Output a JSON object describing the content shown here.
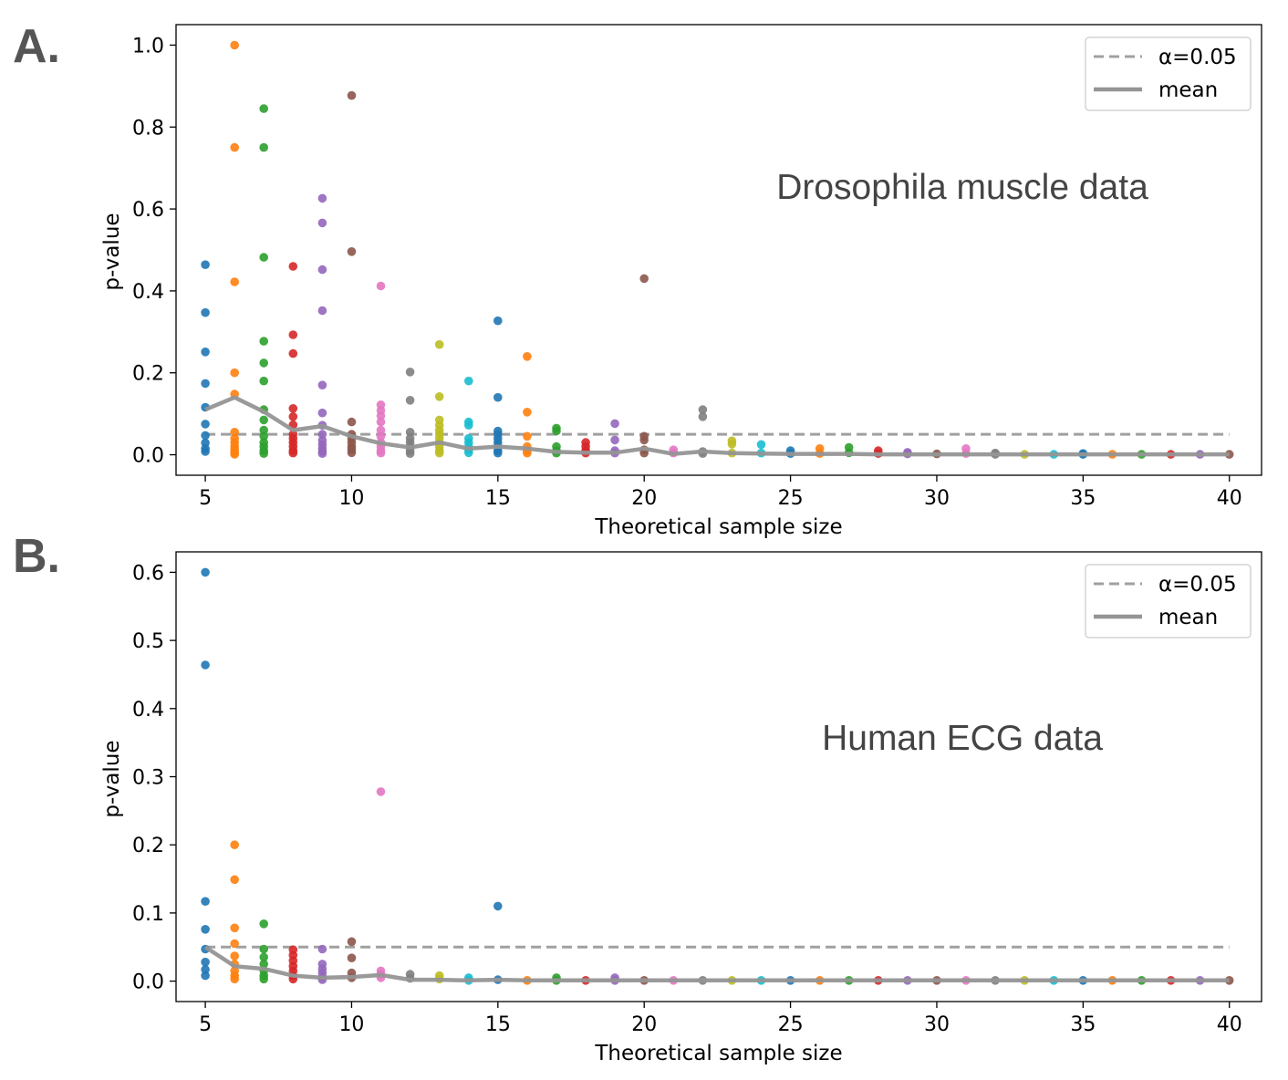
{
  "panels": [
    {
      "letter": "A.",
      "annotation": "Drosophila muscle data",
      "legend": {
        "alpha_label": "α=0.05",
        "mean_label": "mean"
      }
    },
    {
      "letter": "B.",
      "annotation": "Human ECG data",
      "legend": {
        "alpha_label": "α=0.05",
        "mean_label": "mean"
      }
    }
  ],
  "colors": [
    "#1f77b4",
    "#ff7f0e",
    "#2ca02c",
    "#d62728",
    "#9467bd",
    "#8c564b",
    "#e377c2",
    "#7f7f7f",
    "#bcbd22",
    "#17becf"
  ],
  "reference_color": "#a0a0a0",
  "mean_color": "#959595",
  "chart_data": [
    {
      "type": "scatter",
      "xlabel": "Theoretical sample size",
      "ylabel": "p-value",
      "xlim": [
        4,
        41.1
      ],
      "ylim": [
        -0.05,
        1.05
      ],
      "xticks": [
        5,
        10,
        15,
        20,
        25,
        30,
        35,
        40
      ],
      "yticks": [
        0.0,
        0.2,
        0.4,
        0.6,
        0.8,
        1.0
      ],
      "alpha": 0.05,
      "legend_position": "top-right",
      "points": [
        {
          "x": 5,
          "y": [
            0.464,
            0.347,
            0.251,
            0.174,
            0.116,
            0.075,
            0.047,
            0.029,
            0.015,
            0.008
          ]
        },
        {
          "x": 6,
          "y": [
            1.0,
            0.75,
            0.422,
            0.2,
            0.148,
            0.055,
            0.04,
            0.03,
            0.02,
            0.012,
            0.005,
            0.001
          ]
        },
        {
          "x": 7,
          "y": [
            0.845,
            0.75,
            0.482,
            0.277,
            0.224,
            0.18,
            0.11,
            0.085,
            0.06,
            0.045,
            0.03,
            0.02,
            0.01,
            0.003
          ]
        },
        {
          "x": 8,
          "y": [
            0.46,
            0.293,
            0.247,
            0.113,
            0.093,
            0.073,
            0.05,
            0.04,
            0.03,
            0.02,
            0.01,
            0.004
          ]
        },
        {
          "x": 9,
          "y": [
            0.626,
            0.566,
            0.452,
            0.352,
            0.17,
            0.102,
            0.072,
            0.05,
            0.035,
            0.025,
            0.015,
            0.008,
            0.003
          ]
        },
        {
          "x": 10,
          "y": [
            0.877,
            0.496,
            0.08,
            0.05,
            0.04,
            0.03,
            0.02,
            0.012,
            0.005
          ]
        },
        {
          "x": 11,
          "y": [
            0.412,
            0.122,
            0.108,
            0.095,
            0.08,
            0.06,
            0.045,
            0.03,
            0.02,
            0.01,
            0.004
          ]
        },
        {
          "x": 12,
          "y": [
            0.202,
            0.133,
            0.055,
            0.04,
            0.03,
            0.02,
            0.01,
            0.003
          ]
        },
        {
          "x": 13,
          "y": [
            0.269,
            0.142,
            0.085,
            0.072,
            0.06,
            0.05,
            0.04,
            0.03,
            0.02,
            0.01,
            0.004
          ]
        },
        {
          "x": 14,
          "y": [
            0.18,
            0.08,
            0.072,
            0.04,
            0.03,
            0.02,
            0.012,
            0.005
          ]
        },
        {
          "x": 15,
          "y": [
            0.327,
            0.14,
            0.058,
            0.05,
            0.04,
            0.03,
            0.02,
            0.01,
            0.004
          ]
        },
        {
          "x": 16,
          "y": [
            0.24,
            0.104,
            0.045,
            0.02,
            0.01,
            0.004
          ]
        },
        {
          "x": 17,
          "y": [
            0.065,
            0.058,
            0.02,
            0.01,
            0.004
          ]
        },
        {
          "x": 18,
          "y": [
            0.03,
            0.02,
            0.01,
            0.004
          ]
        },
        {
          "x": 19,
          "y": [
            0.076,
            0.036,
            0.01,
            0.004
          ]
        },
        {
          "x": 20,
          "y": [
            0.43,
            0.045,
            0.036,
            0.012,
            0.004
          ]
        },
        {
          "x": 21,
          "y": [
            0.012,
            0.004
          ]
        },
        {
          "x": 22,
          "y": [
            0.11,
            0.093,
            0.008,
            0.003
          ]
        },
        {
          "x": 23,
          "y": [
            0.034,
            0.026,
            0.004
          ]
        },
        {
          "x": 24,
          "y": [
            0.025,
            0.004
          ]
        },
        {
          "x": 25,
          "y": [
            0.01,
            0.003
          ]
        },
        {
          "x": 26,
          "y": [
            0.015,
            0.003
          ]
        },
        {
          "x": 27,
          "y": [
            0.018,
            0.005
          ]
        },
        {
          "x": 28,
          "y": [
            0.01,
            0.003
          ]
        },
        {
          "x": 29,
          "y": [
            0.006,
            0.002
          ]
        },
        {
          "x": 30,
          "y": [
            0.002
          ]
        },
        {
          "x": 31,
          "y": [
            0.015,
            0.003
          ]
        },
        {
          "x": 32,
          "y": [
            0.004,
            0.001
          ]
        },
        {
          "x": 33,
          "y": [
            0.001
          ]
        },
        {
          "x": 34,
          "y": [
            0.001
          ]
        },
        {
          "x": 35,
          "y": [
            0.003,
            0.001
          ]
        },
        {
          "x": 36,
          "y": [
            0.001
          ]
        },
        {
          "x": 37,
          "y": [
            0.001
          ]
        },
        {
          "x": 38,
          "y": [
            0.001
          ]
        },
        {
          "x": 39,
          "y": [
            0.001
          ]
        },
        {
          "x": 40,
          "y": [
            0.001
          ]
        }
      ],
      "mean": {
        "x": [
          5,
          6,
          7,
          8,
          9,
          10,
          11,
          12,
          13,
          14,
          15,
          16,
          17,
          18,
          19,
          20,
          21,
          22,
          23,
          24,
          25,
          26,
          27,
          28,
          29,
          30,
          31,
          32,
          33,
          34,
          35,
          36,
          37,
          38,
          39,
          40
        ],
        "y": [
          0.11,
          0.14,
          0.105,
          0.06,
          0.07,
          0.045,
          0.028,
          0.018,
          0.03,
          0.015,
          0.02,
          0.015,
          0.007,
          0.005,
          0.005,
          0.015,
          0.002,
          0.008,
          0.004,
          0.003,
          0.002,
          0.002,
          0.002,
          0.001,
          0.001,
          0.001,
          0.001,
          0.001,
          0.001,
          0.001,
          0.001,
          0.001,
          0.001,
          0.001,
          0.001,
          0.001
        ]
      }
    },
    {
      "type": "scatter",
      "xlabel": "Theoretical sample size",
      "ylabel": "p-value",
      "xlim": [
        4,
        41.1
      ],
      "ylim": [
        -0.03,
        0.63
      ],
      "xticks": [
        5,
        10,
        15,
        20,
        25,
        30,
        35,
        40
      ],
      "yticks": [
        0.0,
        0.1,
        0.2,
        0.3,
        0.4,
        0.5,
        0.6
      ],
      "alpha": 0.05,
      "legend_position": "top-right",
      "points": [
        {
          "x": 5,
          "y": [
            0.6,
            0.464,
            0.117,
            0.076,
            0.047,
            0.028,
            0.017,
            0.008
          ]
        },
        {
          "x": 6,
          "y": [
            0.2,
            0.149,
            0.078,
            0.055,
            0.037,
            0.025,
            0.015,
            0.008,
            0.003
          ]
        },
        {
          "x": 7,
          "y": [
            0.084,
            0.047,
            0.035,
            0.025,
            0.015,
            0.008,
            0.003
          ]
        },
        {
          "x": 8,
          "y": [
            0.046,
            0.038,
            0.03,
            0.022,
            0.015,
            0.008,
            0.003
          ]
        },
        {
          "x": 9,
          "y": [
            0.047,
            0.025,
            0.018,
            0.012,
            0.006,
            0.002
          ]
        },
        {
          "x": 10,
          "y": [
            0.058,
            0.034,
            0.012,
            0.005
          ]
        },
        {
          "x": 11,
          "y": [
            0.278,
            0.015,
            0.01,
            0.005
          ]
        },
        {
          "x": 12,
          "y": [
            0.01,
            0.004
          ]
        },
        {
          "x": 13,
          "y": [
            0.008,
            0.003
          ]
        },
        {
          "x": 14,
          "y": [
            0.005,
            0.001
          ]
        },
        {
          "x": 15,
          "y": [
            0.11,
            0.002
          ]
        },
        {
          "x": 16,
          "y": [
            0.001
          ]
        },
        {
          "x": 17,
          "y": [
            0.005,
            0.001
          ]
        },
        {
          "x": 18,
          "y": [
            0.001
          ]
        },
        {
          "x": 19,
          "y": [
            0.005,
            0.001
          ]
        },
        {
          "x": 20,
          "y": [
            0.001
          ]
        },
        {
          "x": 21,
          "y": [
            0.001
          ]
        },
        {
          "x": 22,
          "y": [
            0.001
          ]
        },
        {
          "x": 23,
          "y": [
            0.001
          ]
        },
        {
          "x": 24,
          "y": [
            0.001
          ]
        },
        {
          "x": 25,
          "y": [
            0.001
          ]
        },
        {
          "x": 26,
          "y": [
            0.001
          ]
        },
        {
          "x": 27,
          "y": [
            0.001
          ]
        },
        {
          "x": 28,
          "y": [
            0.001
          ]
        },
        {
          "x": 29,
          "y": [
            0.001
          ]
        },
        {
          "x": 30,
          "y": [
            0.001
          ]
        },
        {
          "x": 31,
          "y": [
            0.001
          ]
        },
        {
          "x": 32,
          "y": [
            0.001
          ]
        },
        {
          "x": 33,
          "y": [
            0.001
          ]
        },
        {
          "x": 34,
          "y": [
            0.001
          ]
        },
        {
          "x": 35,
          "y": [
            0.001
          ]
        },
        {
          "x": 36,
          "y": [
            0.001
          ]
        },
        {
          "x": 37,
          "y": [
            0.001
          ]
        },
        {
          "x": 38,
          "y": [
            0.001
          ]
        },
        {
          "x": 39,
          "y": [
            0.001
          ]
        },
        {
          "x": 40,
          "y": [
            0.001
          ]
        }
      ],
      "mean": {
        "x": [
          5,
          6,
          7,
          8,
          9,
          10,
          11,
          12,
          13,
          14,
          15,
          16,
          17,
          18,
          19,
          20,
          21,
          22,
          23,
          24,
          25,
          26,
          27,
          28,
          29,
          30,
          31,
          32,
          33,
          34,
          35,
          36,
          37,
          38,
          39,
          40
        ],
        "y": [
          0.05,
          0.022,
          0.018,
          0.008,
          0.005,
          0.006,
          0.009,
          0.002,
          0.002,
          0.001,
          0.002,
          0.001,
          0.001,
          0.001,
          0.001,
          0.001,
          0.001,
          0.001,
          0.001,
          0.001,
          0.001,
          0.001,
          0.001,
          0.001,
          0.001,
          0.001,
          0.001,
          0.001,
          0.001,
          0.001,
          0.001,
          0.001,
          0.001,
          0.001,
          0.001,
          0.001
        ]
      }
    }
  ]
}
